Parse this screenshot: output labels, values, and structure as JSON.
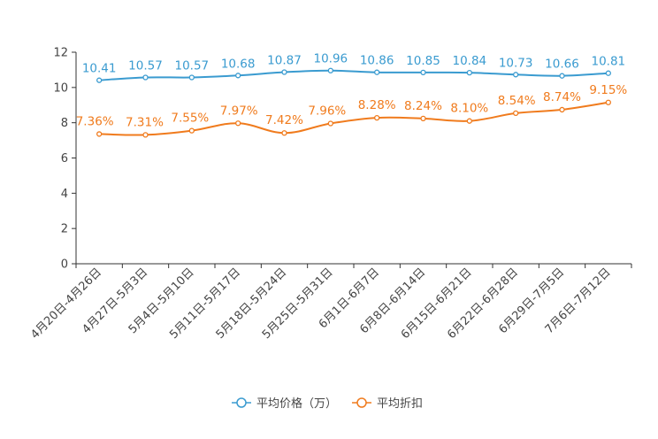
{
  "chart_data": {
    "type": "line",
    "title": "",
    "xlabel": "",
    "ylabel": "",
    "ylim": [
      0,
      12
    ],
    "yticks": [
      0,
      2,
      4,
      6,
      8,
      10,
      12
    ],
    "grid": false,
    "legend_position": "bottom-center",
    "categories": [
      "4月20日-4月26日",
      "4月27日-5月3日",
      "5月4日-5月10日",
      "5月11日-5月17日",
      "5月18日-5月24日",
      "5月25日-5月31日",
      "6月1日-6月7日",
      "6月8日-6月14日",
      "6月15日-6月21日",
      "6月22日-6月28日",
      "6月29日-7月5日",
      "7月6日-7月12日"
    ],
    "series": [
      {
        "name": "平均价格（万）",
        "color": "#3a9bd0",
        "values": [
          10.41,
          10.57,
          10.57,
          10.68,
          10.87,
          10.96,
          10.86,
          10.85,
          10.84,
          10.73,
          10.66,
          10.81
        ],
        "labels": [
          "10.41",
          "10.57",
          "10.57",
          "10.68",
          "10.87",
          "10.96",
          "10.86",
          "10.85",
          "10.84",
          "10.73",
          "10.66",
          "10.81"
        ]
      },
      {
        "name": "平均折扣",
        "color": "#f07b1d",
        "values": [
          7.36,
          7.31,
          7.55,
          7.97,
          7.42,
          7.96,
          8.28,
          8.24,
          8.1,
          8.54,
          8.74,
          9.15
        ],
        "labels": [
          "7.36%",
          "7.31%",
          "7.55%",
          "7.97%",
          "7.42%",
          "7.96%",
          "8.28%",
          "8.24%",
          "8.10%",
          "8.54%",
          "8.74%",
          "9.15%"
        ]
      }
    ]
  }
}
